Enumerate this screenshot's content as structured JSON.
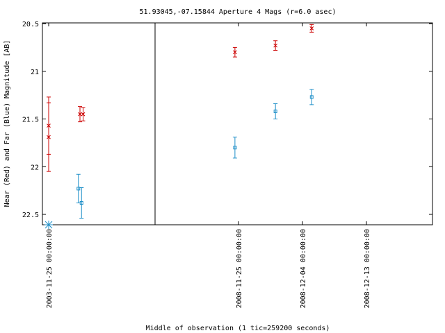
{
  "chart_data": {
    "type": "scatter",
    "title": "51.93045,-07.15844   Aperture 4 Mags (r=6.0 asec)",
    "xlabel": "Middle of observation (1 tic=259200 seconds)",
    "ylabel": "Near (Red) and Far (Blue) Magnitude [AB]",
    "y_inverted": true,
    "ylim": [
      22.6,
      20.5
    ],
    "y_ticks": [
      "20.5",
      "21",
      "21.5",
      "22",
      "22.5"
    ],
    "x_tick_labels": [
      "2003-11-25 00:00:00",
      "2008-11-25 00:00:00",
      "2008-12-04 00:00:00",
      "2008-12-13 00:00:00"
    ],
    "x_axis_break": true,
    "segments": [
      {
        "name": "2003",
        "xlim_days": [
          0,
          5.7
        ]
      },
      {
        "name": "2008",
        "xlim_days": [
          -4.2,
          10.6
        ]
      }
    ],
    "series": [
      {
        "name": "Near (Red)",
        "color": "#cc0000",
        "marker": "x",
        "points": [
          {
            "segment": "2003",
            "x_days": 0.0,
            "y": 21.57,
            "err": 0.3
          },
          {
            "segment": "2003",
            "x_days": 0.0,
            "y": 21.69,
            "err": 0.36
          },
          {
            "segment": "2003",
            "x_days": 1.0,
            "y": 21.45,
            "err": 0.08
          },
          {
            "segment": "2003",
            "x_days": 1.1,
            "y": 21.45,
            "err": 0.07
          },
          {
            "segment": "2008",
            "x_days": -0.5,
            "y": 20.8,
            "err": 0.05
          },
          {
            "segment": "2008",
            "x_days": 5.2,
            "y": 20.73,
            "err": 0.05
          },
          {
            "segment": "2008",
            "x_days": 10.3,
            "y": 20.55,
            "err": 0.04
          }
        ]
      },
      {
        "name": "Far (Blue)",
        "color": "#1e8fc8",
        "marker": "square",
        "points": [
          {
            "segment": "2003",
            "x_days": 0.0,
            "y": 22.6,
            "err": 0,
            "upper_limit": true
          },
          {
            "segment": "2003",
            "x_days": 0.95,
            "y": 22.23,
            "err": 0.15
          },
          {
            "segment": "2003",
            "x_days": 1.05,
            "y": 22.38,
            "err": 0.16
          },
          {
            "segment": "2008",
            "x_days": -0.5,
            "y": 21.8,
            "err": 0.11
          },
          {
            "segment": "2008",
            "x_days": 5.2,
            "y": 21.42,
            "err": 0.08
          },
          {
            "segment": "2008",
            "x_days": 10.3,
            "y": 21.27,
            "err": 0.08
          }
        ]
      }
    ]
  }
}
